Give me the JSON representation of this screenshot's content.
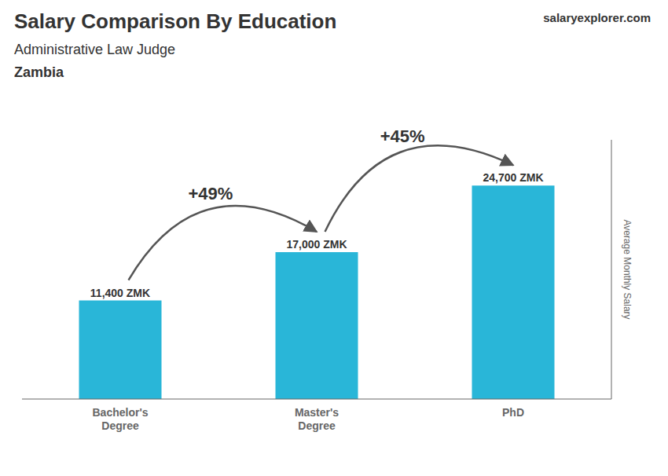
{
  "chart_data": {
    "type": "bar",
    "title": "Salary Comparison By Education",
    "subtitle": "Administrative Law Judge",
    "ylabel": "Average Monthly Salary",
    "categories": [
      "Bachelor's\nDegree",
      "Master's\nDegree",
      "PhD"
    ],
    "values": [
      11400,
      17000,
      24700
    ],
    "value_labels": [
      "11,400 ZMK",
      "17,000 ZMK",
      "24,700 ZMK"
    ],
    "data_labels": true,
    "color": "#29b6d8",
    "ylim": [
      0,
      30000
    ],
    "tick_labels": "x",
    "grid": false,
    "annotations": [
      {
        "text": "+49%",
        "from": "Bachelor's\nDegree",
        "to": "Master's\nDegree"
      },
      {
        "text": "+45%",
        "from": "Master's\nDegree",
        "to": "PhD"
      },
      {
        "text": "Zambia"
      },
      {
        "text": "salaryexplorer.com"
      }
    ]
  }
}
